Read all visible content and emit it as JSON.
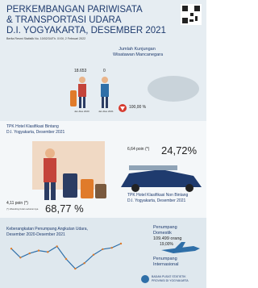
{
  "header": {
    "title_line1": "PERKEMBANGAN PARIWISATA",
    "title_line2": "& TRANSPORTASI UDARA",
    "title_line3": "D.I. YOGYAKARTA, DESEMBER 2021",
    "reference": "Berita Resmi Statistik No. 10/02/34/Th. XXIV, 2 Februari 2022"
  },
  "tourists": {
    "title_line1": "Jumlah Kunjungan",
    "title_line2": "Wisatawan Mancanegara",
    "value_2020": "18.653",
    "value_2021": "0",
    "period_2020": "Jan-Des 2020",
    "period_2021": "Jan-Des 2021",
    "change": "100,00 %"
  },
  "hotel_star": {
    "title_line1": "TPK Hotel Klasifikasi Bintang",
    "title_line2": "D.I. Yogyakarta, Desember 2021",
    "change": "4,11 poin (*)",
    "rate": "68,77 %",
    "note": "(*) dibanding bulan sebelumnya"
  },
  "hotel_nonstar": {
    "title_line1": "TPK Hotel Klasifikasi Non Bintang",
    "title_line2": "D.I. Yogyakarta, Desember 2021",
    "change": "6,64 poin (*)",
    "rate": "24,72%"
  },
  "air": {
    "title_line1": "Keberangkatan Penumpang Angkutan Udara,",
    "title_line2": "Desember 2020-Desember 2021",
    "values": [
      92,
      60,
      75,
      85,
      80,
      100,
      55,
      20,
      40,
      70,
      90,
      95,
      110
    ],
    "domestic_label_line1": "Penumpang",
    "domestic_label_line2": "Domestik",
    "domestic_value": "109.499 orang",
    "domestic_change": "19,00%",
    "international_label_line1": "Penumpang",
    "international_label_line2": "Internasional"
  },
  "footer": {
    "org_line1": "BADAN PUSAT STATISTIK",
    "org_line2": "PROVINSI DI YOGYAKARTA"
  }
}
